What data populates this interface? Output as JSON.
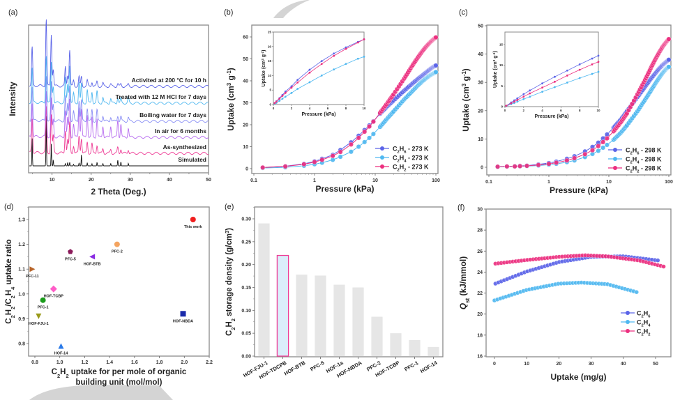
{
  "figure": {
    "watermark_color": "#d0d0d0"
  },
  "chart_data": [
    {
      "panel": "(a)",
      "type": "line",
      "title": "",
      "xlabel": "2 Theta (Deg.)",
      "ylabel": "Intensity",
      "xlim": [
        4,
        50
      ],
      "xticks": [
        10,
        20,
        30,
        40,
        50
      ],
      "yticks": [],
      "grid": false,
      "peaks_2theta": [
        4.9,
        8.5,
        9.8,
        10.3,
        13.4,
        14.0,
        14.5,
        15.5,
        16.9,
        17.5,
        19.0,
        20.2,
        21.5,
        23.0,
        25.0,
        26.8,
        27.6,
        29.5
      ],
      "series": [
        {
          "name": "Simulated",
          "color": "#111111",
          "offset": 0,
          "peak_heights": [
            0.55,
            1.0,
            0.42,
            0.12,
            0.05,
            0.07,
            0.07,
            0.03,
            0.06,
            0.22,
            0.06,
            0.04,
            0.07,
            0.05,
            0.05,
            0.12,
            0.08,
            0.05
          ]
        },
        {
          "name": "As-synthesized",
          "color": "#ee3c95",
          "offset": 1,
          "peak_heights": [
            0.9,
            1.2,
            1.0,
            0.45,
            0.6,
            0.35,
            0.8,
            0.2,
            0.45,
            0.4,
            0.3,
            0.25,
            0.22,
            0.12,
            0.1,
            0.15,
            0.12,
            0.1
          ]
        },
        {
          "name": "In air for 6 months",
          "color": "#b86ef0",
          "offset": 2,
          "peak_heights": [
            0.9,
            1.2,
            1.0,
            0.45,
            0.7,
            0.5,
            1.0,
            0.35,
            0.8,
            0.75,
            0.6,
            0.5,
            0.5,
            0.3,
            0.3,
            0.45,
            0.35,
            0.25
          ]
        },
        {
          "name": "Boiling water for 7 days",
          "color": "#8a8ff5",
          "offset": 3,
          "peak_heights": [
            0.9,
            1.2,
            1.0,
            0.45,
            0.65,
            0.45,
            0.95,
            0.25,
            0.55,
            0.55,
            0.35,
            0.3,
            0.3,
            0.15,
            0.12,
            0.15,
            0.12,
            0.1
          ]
        },
        {
          "name": "Treated with 12 M HCl for 7 days",
          "color": "#4fb8f0",
          "offset": 4,
          "peak_heights": [
            0.9,
            1.25,
            1.05,
            0.45,
            0.65,
            0.5,
            1.0,
            0.25,
            0.55,
            0.5,
            0.35,
            0.3,
            0.3,
            0.15,
            0.12,
            0.15,
            0.12,
            0.15
          ]
        },
        {
          "name": "Activited at 200 °C for 10 h",
          "color": "#5b64e8",
          "offset": 5,
          "peak_heights": [
            1.0,
            1.75,
            1.35,
            0.45,
            0.5,
            0.3,
            0.95,
            0.15,
            0.25,
            0.25,
            0.15,
            0.12,
            0.12,
            0.08,
            0.05,
            0.07,
            0.06,
            0.05
          ]
        }
      ]
    },
    {
      "panel": "(b)",
      "type": "line",
      "title": "",
      "xlabel": "Pressure (kPa)",
      "ylabel": "Uptake (cm³ g⁻¹)",
      "xscale": "log",
      "xlim": [
        0.1,
        100
      ],
      "ylim": [
        -3,
        65
      ],
      "xticks": [
        "0.1",
        "1",
        "10",
        "100"
      ],
      "yticks": [
        0,
        10,
        20,
        30,
        40,
        50,
        60
      ],
      "legend": "bottom-right",
      "grid": false,
      "x": [
        0.14,
        0.33,
        0.67,
        1.0,
        1.33,
        2.0,
        2.67,
        4.0,
        5.33,
        6.67,
        8.0,
        9.33,
        12,
        16,
        20,
        30,
        40,
        50,
        60,
        70,
        80,
        90,
        100
      ],
      "series": [
        {
          "name": "C₂H₆ - 273 K",
          "color": "#5b64e8",
          "values": [
            0.5,
            1.1,
            2.2,
            3.3,
            4.5,
            6.3,
            8.5,
            12.0,
            15.0,
            17.6,
            19.7,
            21.6,
            25.0,
            28.5,
            31.0,
            35.5,
            38.5,
            40.8,
            42.5,
            44.0,
            45.3,
            46.3,
            47.0
          ]
        },
        {
          "name": "C₂H₄ - 273 K",
          "color": "#4fb8f0",
          "values": [
            0.3,
            0.6,
            1.3,
            2.0,
            2.7,
            4.0,
            5.4,
            7.7,
            10.0,
            12.1,
            14.0,
            15.8,
            19.0,
            23.0,
            26.0,
            31.5,
            35.0,
            37.8,
            39.8,
            41.3,
            42.5,
            43.3,
            44.0
          ]
        },
        {
          "name": "C₂H₂ - 273 K",
          "color": "#ec2f7f",
          "values": [
            0.5,
            1.0,
            2.0,
            3.0,
            4.0,
            5.8,
            7.6,
            11.0,
            14.0,
            16.8,
            19.2,
            21.4,
            25.4,
            30.0,
            33.8,
            41.0,
            46.5,
            50.5,
            53.5,
            55.8,
            57.5,
            58.8,
            59.8
          ]
        }
      ],
      "inset": {
        "xlabel": "Pressure (kPa)",
        "ylabel": "Uptake (cm³ g⁻¹)",
        "xlim": [
          0,
          10
        ],
        "ylim": [
          0,
          25
        ],
        "xticks": [
          0,
          2,
          4,
          6,
          8,
          10
        ],
        "yticks": [
          0,
          5,
          10,
          15,
          20,
          25
        ],
        "x": [
          0.14,
          0.33,
          0.67,
          1.0,
          1.33,
          2.0,
          2.67,
          4.0,
          5.33,
          6.67,
          8.0,
          9.33,
          10.0
        ],
        "series": [
          {
            "name": "C2H6",
            "values": [
              0.5,
              1.1,
              2.2,
              3.3,
              4.5,
              6.3,
              8.5,
              12.0,
              15.0,
              17.6,
              19.7,
              21.6,
              22.5
            ]
          },
          {
            "name": "C2H4",
            "values": [
              0.3,
              0.6,
              1.3,
              2.0,
              2.7,
              4.0,
              5.4,
              7.7,
              10.0,
              12.1,
              14.0,
              15.8,
              16.5
            ]
          },
          {
            "name": "C2H2",
            "values": [
              0.5,
              1.0,
              2.0,
              3.0,
              4.0,
              5.8,
              7.6,
              11.0,
              14.0,
              16.8,
              19.2,
              21.4,
              22.5
            ]
          }
        ]
      }
    },
    {
      "panel": "(c)",
      "type": "line",
      "title": "",
      "xlabel": "Pressure (kPa)",
      "ylabel": "Uptake (cm³ g⁻¹)",
      "xscale": "log",
      "xlim": [
        0.1,
        100
      ],
      "ylim": [
        -3,
        50
      ],
      "xticks": [
        "0.1",
        "1",
        "10",
        "100"
      ],
      "yticks": [
        0,
        10,
        20,
        30,
        40,
        50
      ],
      "legend": "bottom-right",
      "grid": false,
      "x": [
        0.14,
        0.2,
        0.27,
        0.33,
        0.43,
        0.67,
        1.0,
        1.33,
        2.0,
        2.67,
        4.0,
        5.33,
        6.67,
        8.0,
        9.33,
        12,
        16,
        20,
        30,
        40,
        50,
        60,
        70,
        80,
        90,
        100
      ],
      "series": [
        {
          "name": "C₂H₆ - 298 K",
          "color": "#5b64e8",
          "values": [
            0.2,
            0.3,
            0.4,
            0.5,
            0.6,
            1.0,
            1.5,
            2.0,
            3.0,
            3.9,
            5.6,
            7.2,
            8.7,
            10.2,
            11.6,
            14.0,
            17.0,
            19.8,
            24.8,
            28.4,
            31.2,
            33.3,
            35.0,
            36.3,
            37.2,
            38.0
          ]
        },
        {
          "name": "C₂H₄ - 298 K",
          "color": "#4fb8f0",
          "values": [
            0.1,
            0.2,
            0.3,
            0.3,
            0.4,
            0.6,
            0.9,
            1.2,
            1.8,
            2.4,
            3.6,
            4.7,
            5.8,
            6.9,
            7.9,
            9.7,
            12.3,
            14.8,
            19.8,
            23.8,
            27.0,
            29.7,
            31.8,
            33.5,
            34.7,
            35.5
          ]
        },
        {
          "name": "C₂H₂ - 298 K",
          "color": "#ec2f7f",
          "values": [
            0.2,
            0.3,
            0.3,
            0.4,
            0.5,
            0.8,
            1.2,
            1.6,
            2.4,
            3.2,
            4.6,
            6.0,
            7.5,
            8.9,
            10.2,
            12.7,
            16.0,
            19.0,
            25.8,
            30.8,
            35.0,
            38.3,
            40.8,
            42.8,
            44.2,
            45.3
          ]
        }
      ],
      "inset": {
        "xlabel": "Pressure (kPa)",
        "ylabel": "Uptake (cm³ g⁻¹)",
        "xlim": [
          0,
          10
        ],
        "ylim": [
          0,
          18
        ],
        "xticks": [
          0,
          2,
          4,
          6,
          8,
          10
        ],
        "yticks": [
          0,
          5,
          10,
          15
        ],
        "x": [
          0.14,
          0.67,
          1.0,
          1.33,
          2.0,
          2.67,
          4.0,
          5.33,
          6.67,
          8.0,
          9.33,
          10.0
        ],
        "series": [
          {
            "name": "C2H6",
            "values": [
              0.2,
              1.0,
              1.5,
              2.0,
              3.0,
              3.9,
              5.6,
              7.2,
              8.7,
              10.2,
              11.6,
              12.3
            ]
          },
          {
            "name": "C2H4",
            "values": [
              0.1,
              0.6,
              0.9,
              1.2,
              1.8,
              2.4,
              3.6,
              4.7,
              5.8,
              6.9,
              7.9,
              8.4
            ]
          },
          {
            "name": "C2H2",
            "values": [
              0.2,
              0.8,
              1.2,
              1.6,
              2.4,
              3.2,
              4.6,
              6.0,
              7.5,
              8.9,
              10.2,
              10.8
            ]
          }
        ]
      }
    },
    {
      "panel": "(d)",
      "type": "scatter",
      "title": "",
      "xlabel": "C₂H₂ uptake for per mole of  organic building unit (mol/mol)",
      "ylabel": "C₂H₂/C₂H₄ uptake ratio",
      "xlim": [
        0.76,
        2.2
      ],
      "ylim": [
        0.75,
        1.35
      ],
      "xticks": [
        0.8,
        1.0,
        1.2,
        1.4,
        1.6,
        1.8,
        2.0,
        2.2
      ],
      "yticks": [
        0.8,
        0.9,
        1.0,
        1.1,
        1.2,
        1.3
      ],
      "grid": false,
      "points": [
        {
          "label": "This work",
          "x": 2.07,
          "y": 1.3,
          "color": "#f01e1e",
          "marker": "sphere"
        },
        {
          "label": "PFC-2",
          "x": 1.46,
          "y": 1.2,
          "color": "#f4a460",
          "marker": "circle"
        },
        {
          "label": "PFC-5",
          "x": 1.085,
          "y": 1.17,
          "color": "#8b1a5a",
          "marker": "pentagon"
        },
        {
          "label": "HOF-BTB",
          "x": 1.26,
          "y": 1.15,
          "color": "#8a2be2",
          "marker": "triangle-left"
        },
        {
          "label": "PFC-11",
          "x": 0.78,
          "y": 1.1,
          "color": "#b8652a",
          "marker": "triangle-right"
        },
        {
          "label": "HOF-TCBP",
          "x": 0.95,
          "y": 1.02,
          "color": "#ff5cc8",
          "marker": "diamond"
        },
        {
          "label": "PFC-1",
          "x": 0.865,
          "y": 0.975,
          "color": "#1a9c1a",
          "marker": "circle"
        },
        {
          "label": "HOF-FJU-1",
          "x": 0.83,
          "y": 0.91,
          "color": "#9a9a1a",
          "marker": "triangle-down"
        },
        {
          "label": "HOF-NBDA",
          "x": 1.99,
          "y": 0.92,
          "color": "#1a2aaa",
          "marker": "square"
        },
        {
          "label": "HOF-14",
          "x": 1.01,
          "y": 0.79,
          "color": "#2a7ae8",
          "marker": "triangle-up"
        }
      ]
    },
    {
      "panel": "(e)",
      "type": "bar",
      "title": "",
      "xlabel": "",
      "ylabel": "C₂H₂ storage density (g/cm³)",
      "ylim": [
        0,
        0.32
      ],
      "yticks": [
        "0.00",
        "0.05",
        "0.10",
        "0.15",
        "0.20",
        "0.25",
        "0.30"
      ],
      "grid": false,
      "categories": [
        "HOF-FJU-1",
        "HOF-TDCPB",
        "HOF-BTB",
        "PFC-5",
        "HOF-1a",
        "HOF-NBDA",
        "PFC-2",
        "HOF-TCBP",
        "PFC-1",
        "HOF-14"
      ],
      "values": [
        0.29,
        0.22,
        0.178,
        0.176,
        0.156,
        0.15,
        0.086,
        0.05,
        0.035,
        0.02
      ],
      "highlight": "HOF-TDCPB",
      "bar_color": "#e6e6e6",
      "highlight_fill": "#dbeefb",
      "highlight_stroke": "#ee3c95"
    },
    {
      "panel": "(f)",
      "type": "line",
      "title": "",
      "xlabel": "Uptake  (mg/g)",
      "ylabel": "Q_st (kJ/mmol)",
      "xlim": [
        -1,
        54
      ],
      "ylim": [
        16,
        30
      ],
      "xticks": [
        0,
        10,
        20,
        30,
        40,
        50
      ],
      "yticks": [
        16,
        18,
        20,
        22,
        24,
        26,
        28,
        30
      ],
      "legend": "right",
      "grid": false,
      "series": [
        {
          "name": "C₂H₆",
          "color": "#5b64e8",
          "x_range": [
            0.3,
            51
          ],
          "values_at": [
            [
              0.3,
              22.9
            ],
            [
              10,
              24.05
            ],
            [
              20,
              24.95
            ],
            [
              30,
              25.45
            ],
            [
              40,
              25.5
            ],
            [
              51,
              25.1
            ]
          ]
        },
        {
          "name": "C₂H₄",
          "color": "#4fb8f0",
          "x_range": [
            0,
            44.6
          ],
          "values_at": [
            [
              0,
              21.3
            ],
            [
              10,
              22.3
            ],
            [
              20,
              22.9
            ],
            [
              27,
              23.0
            ],
            [
              35,
              22.85
            ],
            [
              44.6,
              22.05
            ]
          ]
        },
        {
          "name": "C₂H₂",
          "color": "#ec2f7f",
          "x_range": [
            0.3,
            52.8
          ],
          "values_at": [
            [
              0.3,
              24.8
            ],
            [
              10,
              25.15
            ],
            [
              20,
              25.45
            ],
            [
              28,
              25.6
            ],
            [
              35,
              25.5
            ],
            [
              45,
              25.1
            ],
            [
              52.8,
              24.5
            ]
          ]
        }
      ]
    }
  ]
}
